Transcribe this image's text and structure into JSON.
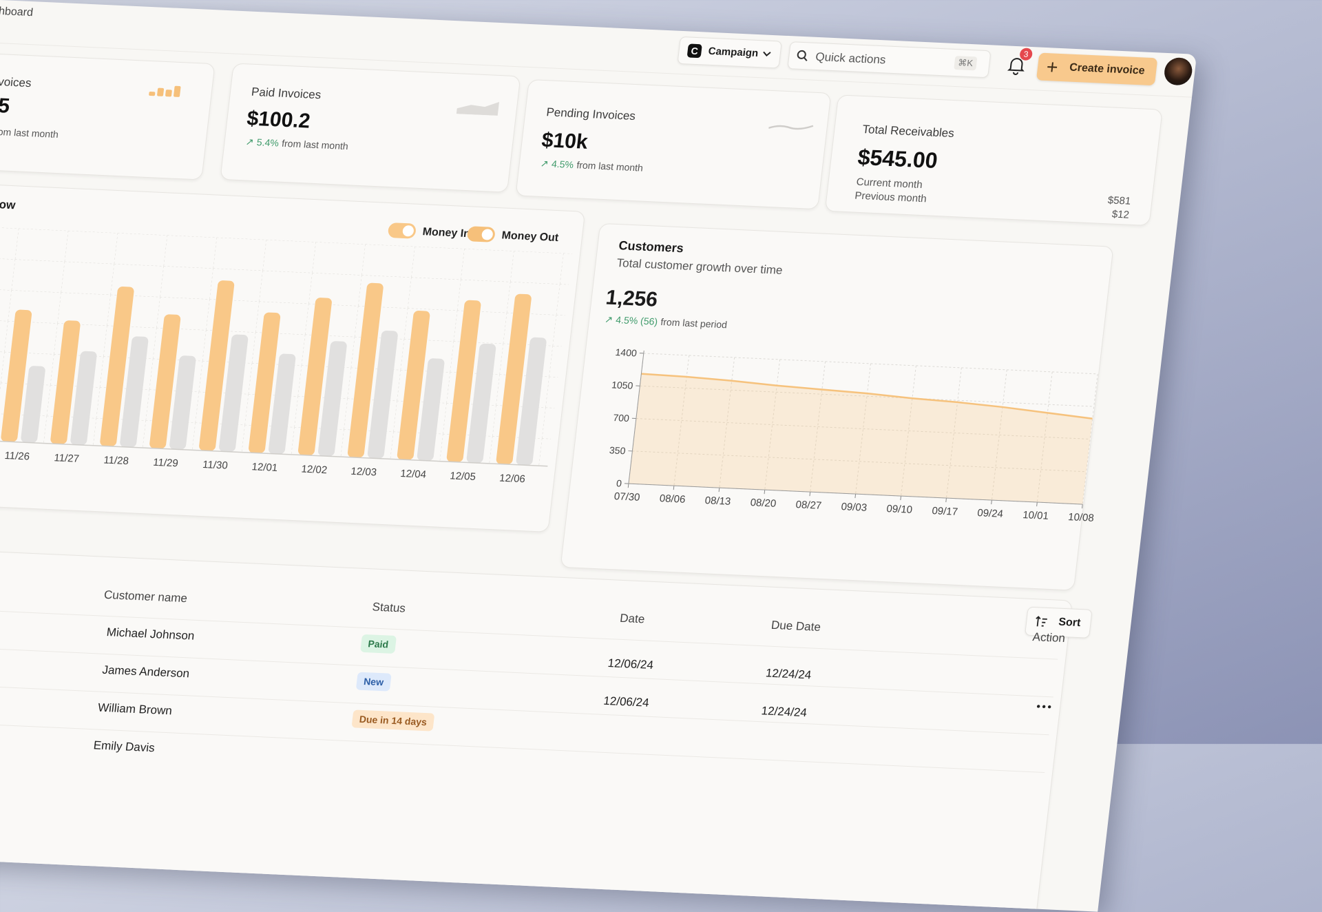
{
  "header": {
    "breadcrumb": "hboard",
    "campaign": {
      "logo": "C",
      "label": "Campaign"
    },
    "search": {
      "placeholder": "Quick actions",
      "shortcut": "⌘K"
    },
    "notifications": "3",
    "create_button": "Create invoice"
  },
  "cards": [
    {
      "title": "voices",
      "value": "5",
      "note": "om last month"
    },
    {
      "title": "Paid Invoices",
      "value": "$100.2",
      "change": "5.4%",
      "note": "from last month"
    },
    {
      "title": "Pending Invoices",
      "value": "$10k",
      "change": "4.5%",
      "note": "from last month"
    },
    {
      "title": "Total Receivables",
      "value": "$545.00",
      "rows": [
        {
          "label": "Current month",
          "value": "$581"
        },
        {
          "label": "Previous month",
          "value": "$12"
        }
      ]
    }
  ],
  "chart_data": [
    {
      "type": "bar",
      "title": "ow",
      "categories": [
        "11/26",
        "11/27",
        "11/28",
        "11/29",
        "11/30",
        "12/01",
        "12/02",
        "12/03",
        "12/04",
        "12/05",
        "12/06"
      ],
      "series": [
        {
          "name": "Money In",
          "color": "#f9c888",
          "values": [
            62,
            58,
            75,
            63,
            80,
            66,
            74,
            82,
            70,
            76,
            80
          ]
        },
        {
          "name": "Money Out",
          "color": "#e1e0df",
          "values": [
            36,
            44,
            52,
            44,
            55,
            47,
            54,
            60,
            48,
            56,
            60
          ]
        }
      ],
      "ylim": [
        0,
        100
      ]
    },
    {
      "type": "line",
      "title": "Customers",
      "subtitle": "Total customer growth over time",
      "total": "1,256",
      "change": "4.5% (56)",
      "change_note": "from last period",
      "x": [
        "07/30",
        "08/06",
        "08/13",
        "08/20",
        "08/27",
        "09/03",
        "09/10",
        "09/17",
        "09/24",
        "10/01",
        "10/08"
      ],
      "values": [
        1180,
        1170,
        1150,
        1120,
        1100,
        1080,
        1050,
        1030,
        1000,
        960,
        920
      ],
      "color": "#f6c27d",
      "ylim": [
        0,
        1400
      ],
      "yticks": [
        0,
        350,
        700,
        1050,
        1400
      ],
      "grid": true
    }
  ],
  "table": {
    "sort": "Sort",
    "columns": [
      "Customer name",
      "Status",
      "Date",
      "Due Date",
      "Action"
    ],
    "rows": [
      {
        "name": "Michael Johnson",
        "status": "Paid",
        "date": "12/06/24",
        "due": "12/24/24"
      },
      {
        "name": "James Anderson",
        "status": "New",
        "date": "12/06/24",
        "due": "12/24/24"
      },
      {
        "name": "William Brown",
        "status": "Due in 14 days"
      },
      {
        "name": "Emily Davis"
      }
    ]
  }
}
